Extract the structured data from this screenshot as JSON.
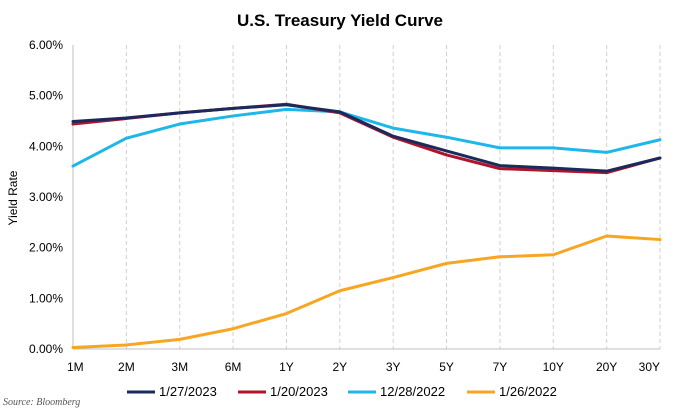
{
  "chart_data": {
    "type": "line",
    "title": "U.S. Treasury Yield Curve",
    "xlabel": "",
    "ylabel": "Yield Rate",
    "categories": [
      "1M",
      "2M",
      "3M",
      "6M",
      "1Y",
      "2Y",
      "3Y",
      "5Y",
      "7Y",
      "10Y",
      "20Y",
      "30Y"
    ],
    "ylim": [
      0,
      6
    ],
    "yticks": [
      "0.00%",
      "1.00%",
      "2.00%",
      "3.00%",
      "4.00%",
      "5.00%",
      "6.00%"
    ],
    "grid": "vertical dashed",
    "legend_position": "bottom",
    "series": [
      {
        "name": "1/27/2023",
        "color": "#1b2a5c",
        "values": [
          4.49,
          4.56,
          4.66,
          4.75,
          4.82,
          4.68,
          4.2,
          3.91,
          3.62,
          3.57,
          3.51,
          3.77
        ]
      },
      {
        "name": "1/20/2023",
        "color": "#b0142a",
        "values": [
          4.44,
          4.55,
          4.66,
          4.75,
          4.83,
          4.66,
          4.18,
          3.83,
          3.56,
          3.52,
          3.48,
          3.77
        ]
      },
      {
        "name": "12/28/2022",
        "color": "#1fb6e8",
        "values": [
          3.61,
          4.16,
          4.44,
          4.6,
          4.73,
          4.68,
          4.36,
          4.18,
          3.97,
          3.97,
          3.88,
          4.13
        ]
      },
      {
        "name": "1/26/2022",
        "color": "#f7a623",
        "values": [
          0.03,
          0.08,
          0.19,
          0.4,
          0.7,
          1.15,
          1.41,
          1.69,
          1.82,
          1.86,
          2.23,
          2.16
        ]
      }
    ]
  },
  "source_note": "Source: Bloomberg"
}
